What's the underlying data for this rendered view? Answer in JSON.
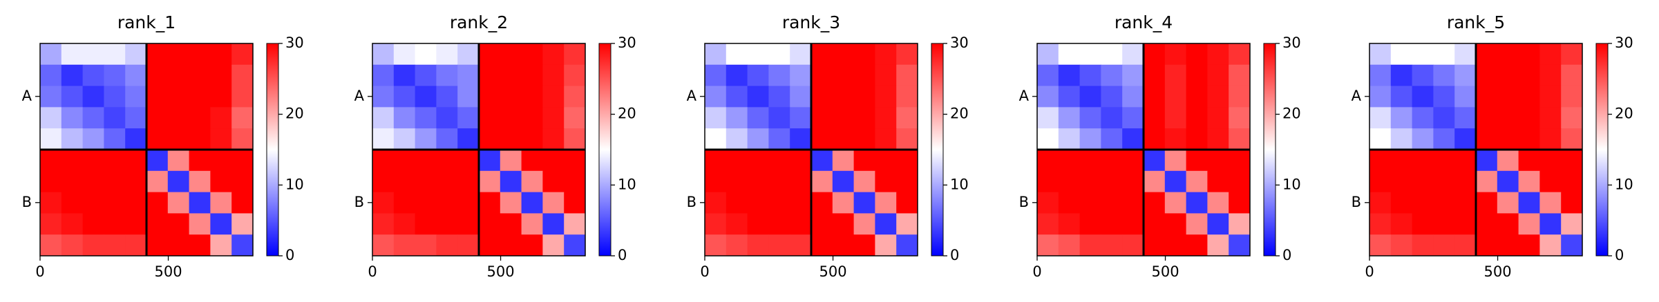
{
  "chart_data": [
    {
      "type": "heatmap",
      "title": "rank_1",
      "colormap": "bwr",
      "xlim": [
        0,
        830
      ],
      "ylim": [
        830,
        0
      ],
      "xticks": [
        0,
        500
      ],
      "yticks": [
        {
          "value": 207,
          "label": "A"
        },
        {
          "value": 622,
          "label": "B"
        }
      ],
      "chain_breaks": [
        415
      ],
      "clim": [
        0,
        30
      ],
      "cticks": [
        0,
        10,
        20,
        30
      ],
      "z": [
        [
          10,
          14,
          14,
          14,
          12,
          30,
          30,
          30,
          30,
          28
        ],
        [
          6,
          3,
          5,
          6,
          8,
          30,
          30,
          30,
          30,
          26
        ],
        [
          7,
          5,
          3,
          5,
          7,
          30,
          30,
          30,
          30,
          26
        ],
        [
          12,
          8,
          6,
          4,
          6,
          30,
          30,
          30,
          29,
          24
        ],
        [
          14,
          11,
          9,
          6,
          3,
          30,
          30,
          30,
          29,
          25
        ],
        [
          30,
          30,
          30,
          30,
          30,
          3,
          22,
          30,
          30,
          30
        ],
        [
          30,
          30,
          30,
          30,
          30,
          22,
          3,
          22,
          30,
          30
        ],
        [
          29,
          30,
          30,
          30,
          30,
          30,
          22,
          3,
          22,
          30
        ],
        [
          28,
          29,
          30,
          30,
          30,
          30,
          30,
          22,
          3,
          20
        ],
        [
          25,
          26,
          27,
          27,
          27,
          30,
          30,
          30,
          20,
          4
        ]
      ]
    },
    {
      "type": "heatmap",
      "title": "rank_2",
      "colormap": "bwr",
      "xlim": [
        0,
        830
      ],
      "ylim": [
        830,
        0
      ],
      "xticks": [
        0,
        500
      ],
      "yticks": [
        {
          "value": 207,
          "label": "A"
        },
        {
          "value": 622,
          "label": "B"
        }
      ],
      "chain_breaks": [
        415
      ],
      "clim": [
        0,
        30
      ],
      "cticks": [
        0,
        10,
        20,
        30
      ],
      "z": [
        [
          11,
          14,
          15,
          14,
          12,
          30,
          30,
          30,
          29,
          27
        ],
        [
          6,
          3,
          5,
          7,
          8,
          30,
          30,
          30,
          29,
          26
        ],
        [
          7,
          5,
          3,
          5,
          8,
          30,
          30,
          30,
          29,
          25
        ],
        [
          12,
          8,
          6,
          4,
          6,
          30,
          30,
          30,
          29,
          24
        ],
        [
          14,
          12,
          9,
          6,
          3,
          30,
          30,
          30,
          29,
          25
        ],
        [
          30,
          30,
          30,
          30,
          30,
          3,
          22,
          30,
          30,
          30
        ],
        [
          30,
          30,
          30,
          30,
          30,
          22,
          3,
          22,
          30,
          30
        ],
        [
          29,
          30,
          30,
          30,
          30,
          30,
          22,
          3,
          22,
          30
        ],
        [
          28,
          29,
          30,
          30,
          30,
          30,
          30,
          22,
          3,
          20
        ],
        [
          25,
          26,
          26,
          27,
          27,
          30,
          30,
          30,
          20,
          4
        ]
      ]
    },
    {
      "type": "heatmap",
      "title": "rank_3",
      "colormap": "bwr",
      "xlim": [
        0,
        830
      ],
      "ylim": [
        830,
        0
      ],
      "xticks": [
        0,
        500
      ],
      "yticks": [
        {
          "value": 207,
          "label": "A"
        },
        {
          "value": 622,
          "label": "B"
        }
      ],
      "chain_breaks": [
        415
      ],
      "clim": [
        0,
        30
      ],
      "cticks": [
        0,
        10,
        20,
        30
      ],
      "z": [
        [
          11,
          15,
          15,
          15,
          13,
          30,
          30,
          30,
          29,
          27
        ],
        [
          6,
          3,
          5,
          7,
          9,
          30,
          30,
          30,
          29,
          25
        ],
        [
          8,
          5,
          3,
          5,
          8,
          30,
          30,
          30,
          29,
          25
        ],
        [
          12,
          9,
          6,
          4,
          6,
          30,
          30,
          30,
          29,
          24
        ],
        [
          15,
          12,
          9,
          6,
          3,
          30,
          30,
          30,
          29,
          25
        ],
        [
          30,
          30,
          30,
          30,
          30,
          3,
          22,
          30,
          30,
          30
        ],
        [
          30,
          30,
          30,
          30,
          30,
          22,
          3,
          22,
          30,
          30
        ],
        [
          29,
          30,
          30,
          30,
          30,
          30,
          22,
          3,
          22,
          30
        ],
        [
          28,
          29,
          30,
          30,
          30,
          30,
          30,
          22,
          3,
          20
        ],
        [
          25,
          26,
          27,
          27,
          27,
          30,
          30,
          30,
          20,
          4
        ]
      ]
    },
    {
      "type": "heatmap",
      "title": "rank_4",
      "colormap": "bwr",
      "xlim": [
        0,
        830
      ],
      "ylim": [
        830,
        0
      ],
      "xticks": [
        0,
        500
      ],
      "yticks": [
        {
          "value": 207,
          "label": "A"
        },
        {
          "value": 622,
          "label": "B"
        }
      ],
      "chain_breaks": [
        415
      ],
      "clim": [
        0,
        30
      ],
      "cticks": [
        0,
        10,
        20,
        30
      ],
      "z": [
        [
          11,
          15,
          15,
          15,
          13,
          30,
          29,
          30,
          29,
          27
        ],
        [
          6,
          3,
          5,
          7,
          9,
          30,
          28,
          30,
          29,
          25
        ],
        [
          8,
          5,
          3,
          5,
          8,
          30,
          28,
          30,
          29,
          25
        ],
        [
          13,
          9,
          6,
          4,
          6,
          30,
          28,
          30,
          29,
          24
        ],
        [
          15,
          12,
          9,
          6,
          3,
          30,
          29,
          30,
          29,
          25
        ],
        [
          30,
          30,
          30,
          30,
          30,
          3,
          22,
          30,
          30,
          30
        ],
        [
          30,
          30,
          30,
          30,
          30,
          22,
          3,
          22,
          30,
          30
        ],
        [
          29,
          30,
          30,
          30,
          30,
          30,
          22,
          3,
          22,
          30
        ],
        [
          28,
          29,
          30,
          30,
          30,
          30,
          30,
          22,
          3,
          20
        ],
        [
          24,
          25,
          27,
          27,
          27,
          30,
          30,
          30,
          20,
          4
        ]
      ]
    },
    {
      "type": "heatmap",
      "title": "rank_5",
      "colormap": "bwr",
      "xlim": [
        0,
        830
      ],
      "ylim": [
        830,
        0
      ],
      "xticks": [
        0,
        500
      ],
      "yticks": [
        {
          "value": 207,
          "label": "A"
        },
        {
          "value": 622,
          "label": "B"
        }
      ],
      "chain_breaks": [
        415
      ],
      "clim": [
        0,
        30
      ],
      "cticks": [
        0,
        10,
        20,
        30
      ],
      "z": [
        [
          12,
          15,
          15,
          15,
          13,
          30,
          30,
          30,
          29,
          27
        ],
        [
          7,
          3,
          5,
          7,
          9,
          30,
          30,
          30,
          29,
          25
        ],
        [
          8,
          5,
          3,
          5,
          8,
          30,
          30,
          30,
          29,
          25
        ],
        [
          13,
          9,
          6,
          4,
          6,
          30,
          30,
          30,
          29,
          24
        ],
        [
          15,
          12,
          9,
          6,
          3,
          30,
          30,
          30,
          29,
          25
        ],
        [
          30,
          30,
          30,
          30,
          30,
          3,
          22,
          30,
          30,
          30
        ],
        [
          30,
          30,
          30,
          30,
          30,
          22,
          3,
          22,
          30,
          30
        ],
        [
          29,
          30,
          30,
          30,
          30,
          30,
          22,
          3,
          22,
          30
        ],
        [
          28,
          29,
          30,
          30,
          30,
          30,
          30,
          22,
          3,
          20
        ],
        [
          25,
          26,
          27,
          27,
          27,
          30,
          30,
          30,
          20,
          4
        ]
      ]
    }
  ]
}
